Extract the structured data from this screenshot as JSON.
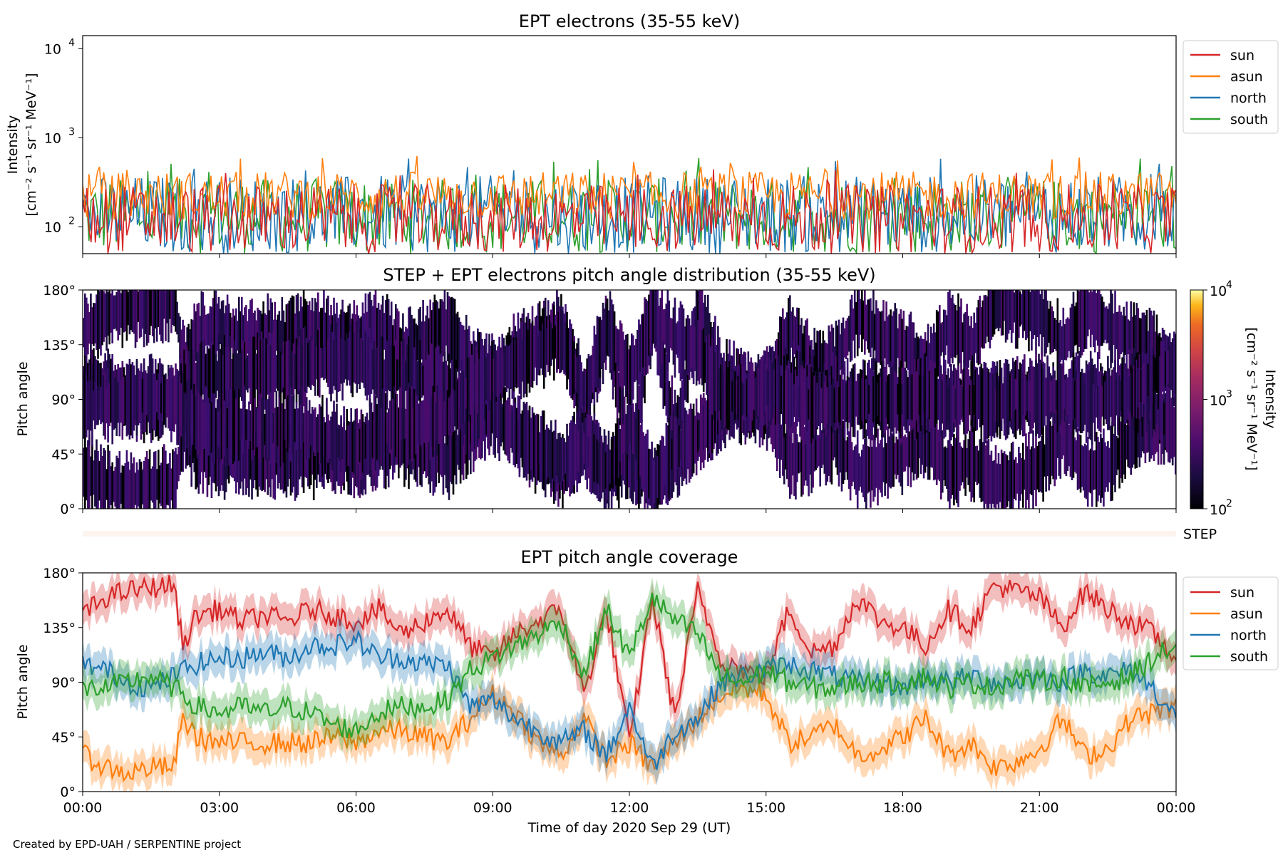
{
  "footer": "Created by EPD-UAH / SERPENTINE project",
  "colors": {
    "sun": "#d62728",
    "asun": "#ff7f0e",
    "north": "#1f77b4",
    "south": "#2ca02c",
    "step_band": "#fdf3ef"
  },
  "chart_data": [
    {
      "id": "intensity",
      "type": "line",
      "title": "EPT electrons (35-55 keV)",
      "ylabel_line1": "Intensity",
      "ylabel_line2": "[cm⁻² s⁻¹ sr⁻¹ MeV⁻¹]",
      "yscale": "log",
      "ylim": [
        50,
        14000
      ],
      "yticks": [
        {
          "value": 100,
          "base": "10",
          "exp": "2"
        },
        {
          "value": 1000,
          "base": "10",
          "exp": "3"
        },
        {
          "value": 10000,
          "base": "10",
          "exp": "4"
        }
      ],
      "x_ticks_hours": [
        0,
        3,
        6,
        9,
        12,
        15,
        18,
        21,
        24
      ],
      "legend": [
        "sun",
        "asun",
        "north",
        "south"
      ],
      "series": [
        {
          "name": "south",
          "typical_range": [
            50,
            350
          ],
          "peak": 600
        },
        {
          "name": "north",
          "typical_range": [
            50,
            380
          ],
          "peak": 660
        },
        {
          "name": "asun",
          "typical_range": [
            120,
            420
          ],
          "peak": 650
        },
        {
          "name": "sun",
          "typical_range": [
            50,
            300
          ],
          "peak": 450
        }
      ]
    },
    {
      "id": "pad",
      "type": "heatmap",
      "title": "STEP + EPT electrons pitch angle distribution (35-55 keV)",
      "ylabel": "Pitch angle",
      "ylim": [
        0,
        180
      ],
      "yticks": [
        "0°",
        "45°",
        "90°",
        "135°",
        "180°"
      ],
      "colorbar": {
        "label_line1": "Intensity",
        "label_line2": "[cm⁻² s⁻¹ sr⁻¹ MeV⁻¹]",
        "scale": "log",
        "range": [
          100,
          10000
        ],
        "ticks": [
          {
            "base": "10",
            "exp": "2"
          },
          {
            "base": "10",
            "exp": "3"
          },
          {
            "base": "10",
            "exp": "4"
          }
        ],
        "colormap": "inferno"
      },
      "step_label": "STEP"
    },
    {
      "id": "coverage",
      "type": "line",
      "title": "EPT pitch angle coverage",
      "ylabel": "Pitch angle",
      "ylim": [
        0,
        180
      ],
      "yticks": [
        "0°",
        "45°",
        "90°",
        "135°",
        "180°"
      ],
      "xlabel": "Time of day 2020 Sep 29 (UT)",
      "x_ticks": [
        "00:00",
        "03:00",
        "06:00",
        "09:00",
        "12:00",
        "15:00",
        "18:00",
        "21:00",
        "00:00"
      ],
      "legend": [
        "sun",
        "asun",
        "north",
        "south"
      ],
      "x_hours": [
        0,
        0.5,
        1,
        1.5,
        2,
        2.2,
        2.5,
        3,
        3.5,
        4,
        4.5,
        5,
        5.5,
        6,
        6.5,
        7,
        7.5,
        8,
        8.5,
        9,
        9.5,
        10,
        10.5,
        11,
        11.5,
        12,
        12.5,
        13,
        13.5,
        14,
        14.5,
        15,
        15.5,
        16,
        16.5,
        17,
        17.5,
        18,
        18.5,
        19,
        19.5,
        20,
        20.5,
        21,
        21.5,
        22,
        22.5,
        23,
        23.5,
        24
      ],
      "series": [
        {
          "name": "sun",
          "values": [
            145,
            160,
            165,
            168,
            170,
            120,
            145,
            150,
            140,
            145,
            140,
            150,
            145,
            140,
            150,
            130,
            140,
            150,
            120,
            110,
            130,
            140,
            150,
            80,
            150,
            40,
            160,
            60,
            165,
            110,
            100,
            95,
            150,
            115,
            120,
            160,
            140,
            135,
            120,
            150,
            135,
            170,
            165,
            160,
            135,
            165,
            150,
            140,
            130,
            110
          ]
        },
        {
          "name": "asun",
          "values": [
            30,
            20,
            15,
            20,
            20,
            60,
            45,
            40,
            40,
            40,
            40,
            40,
            45,
            40,
            50,
            50,
            45,
            40,
            60,
            80,
            65,
            40,
            30,
            60,
            25,
            40,
            20,
            40,
            60,
            80,
            85,
            80,
            40,
            45,
            55,
            30,
            35,
            45,
            60,
            30,
            40,
            20,
            25,
            35,
            60,
            30,
            35,
            60,
            65,
            70
          ]
        },
        {
          "name": "north",
          "values": [
            105,
            100,
            90,
            85,
            95,
            100,
            105,
            110,
            110,
            115,
            110,
            120,
            120,
            125,
            110,
            110,
            105,
            105,
            70,
            75,
            60,
            50,
            40,
            50,
            30,
            70,
            20,
            50,
            60,
            90,
            95,
            100,
            105,
            100,
            95,
            90,
            90,
            85,
            95,
            90,
            95,
            90,
            90,
            95,
            90,
            100,
            95,
            100,
            85,
            60
          ]
        },
        {
          "name": "south",
          "values": [
            85,
            85,
            90,
            95,
            85,
            80,
            70,
            65,
            70,
            65,
            70,
            65,
            55,
            50,
            65,
            70,
            70,
            75,
            100,
            110,
            120,
            130,
            140,
            95,
            150,
            110,
            160,
            140,
            130,
            95,
            90,
            100,
            90,
            85,
            85,
            90,
            90,
            90,
            95,
            85,
            90,
            85,
            95,
            90,
            95,
            85,
            90,
            95,
            110,
            120
          ]
        }
      ]
    }
  ]
}
